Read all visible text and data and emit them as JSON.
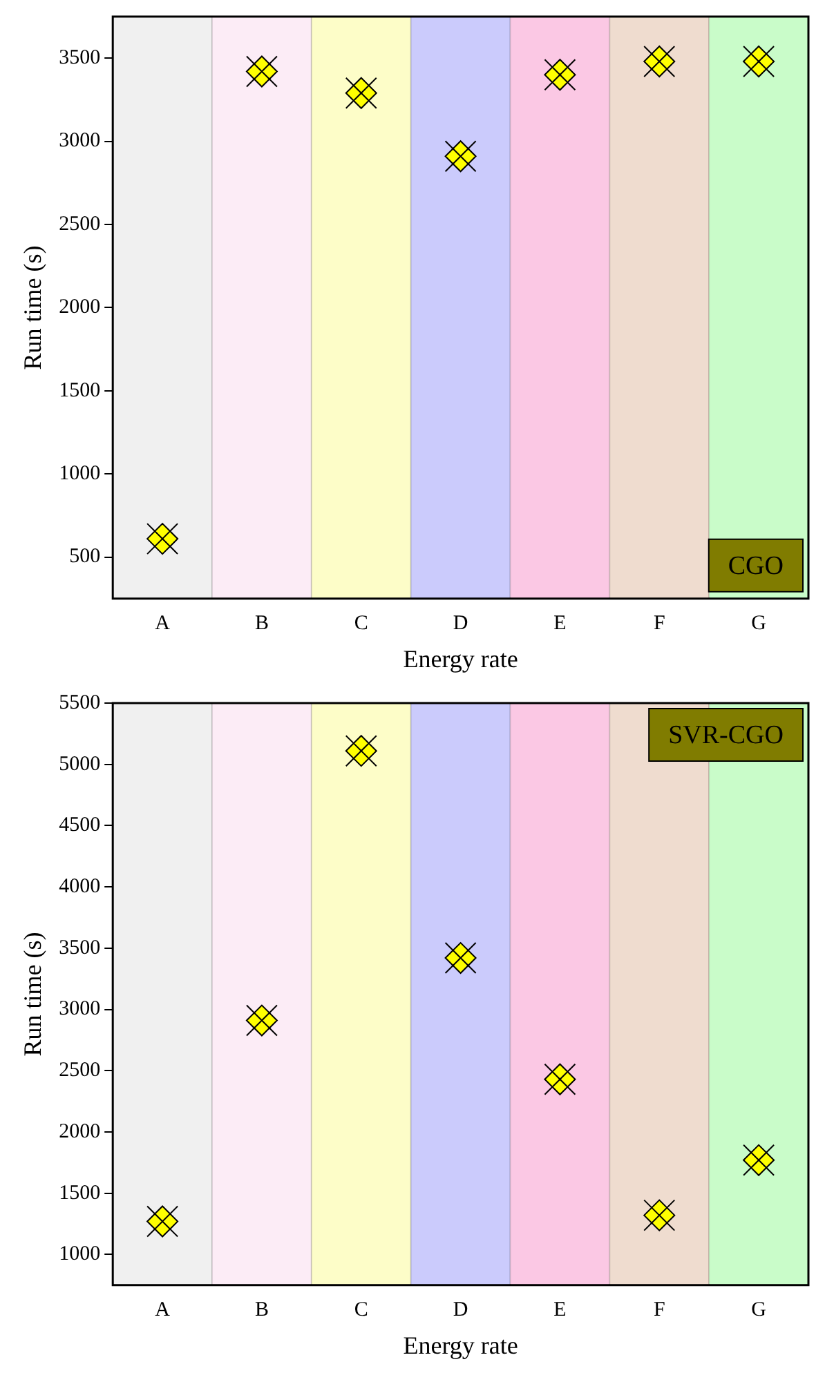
{
  "chart_data": [
    {
      "type": "scatter",
      "xlabel": "Energy rate",
      "ylabel": "Run time (s)",
      "categories": [
        "A",
        "B",
        "C",
        "D",
        "E",
        "F",
        "G"
      ],
      "series": [
        {
          "color": "#ffff00",
          "values": [
            610,
            3420,
            3290,
            2910,
            3400,
            3480,
            3480
          ]
        }
      ],
      "ylim": [
        250,
        3750
      ],
      "yticks": [
        500,
        1000,
        1500,
        2000,
        2500,
        3000,
        3500
      ],
      "marker": "diamond",
      "grid": false,
      "legend": false,
      "annotations": [
        "CGO"
      ],
      "bands": [
        {
          "axis": "x",
          "from": "A",
          "to": "A",
          "color": "#f0f0f0"
        },
        {
          "axis": "x",
          "from": "B",
          "to": "B",
          "color": "#fcecf6"
        },
        {
          "axis": "x",
          "from": "C",
          "to": "C",
          "color": "#fdfdc8"
        },
        {
          "axis": "x",
          "from": "D",
          "to": "D",
          "color": "#cbcbfc"
        },
        {
          "axis": "x",
          "from": "E",
          "to": "E",
          "color": "#fbc8e4"
        },
        {
          "axis": "x",
          "from": "F",
          "to": "F",
          "color": "#efdccf"
        },
        {
          "axis": "x",
          "from": "G",
          "to": "G",
          "color": "#c9fcc9"
        }
      ]
    },
    {
      "type": "scatter",
      "xlabel": "Energy rate",
      "ylabel": "Run time (s)",
      "categories": [
        "A",
        "B",
        "C",
        "D",
        "E",
        "F",
        "G"
      ],
      "series": [
        {
          "color": "#ffff00",
          "values": [
            1270,
            2910,
            5110,
            3420,
            2430,
            1320,
            1770
          ]
        }
      ],
      "ylim": [
        750,
        5500
      ],
      "yticks": [
        1000,
        1500,
        2000,
        2500,
        3000,
        3500,
        4000,
        4500,
        5000,
        5500
      ],
      "marker": "diamond",
      "grid": false,
      "legend": false,
      "annotations": [
        "SVR-CGO"
      ],
      "bands": [
        {
          "axis": "x",
          "from": "A",
          "to": "A",
          "color": "#f0f0f0"
        },
        {
          "axis": "x",
          "from": "B",
          "to": "B",
          "color": "#fcecf6"
        },
        {
          "axis": "x",
          "from": "C",
          "to": "C",
          "color": "#fdfdc8"
        },
        {
          "axis": "x",
          "from": "D",
          "to": "D",
          "color": "#cbcbfc"
        },
        {
          "axis": "x",
          "from": "E",
          "to": "E",
          "color": "#fbc8e4"
        },
        {
          "axis": "x",
          "from": "F",
          "to": "F",
          "color": "#efdccf"
        },
        {
          "axis": "x",
          "from": "G",
          "to": "G",
          "color": "#c9fcc9"
        }
      ]
    }
  ]
}
